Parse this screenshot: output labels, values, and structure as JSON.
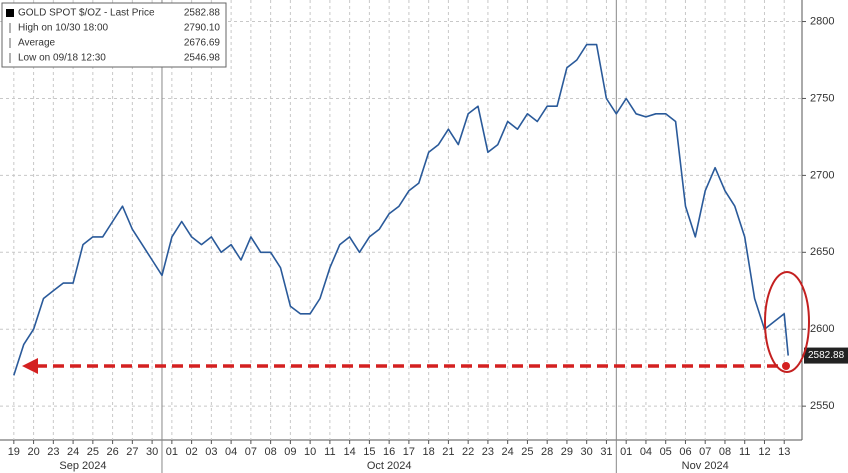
{
  "chart_data": {
    "type": "line",
    "legend_box": [
      {
        "text": "GOLD SPOT $/OZ - Last Price",
        "value": 2582.88
      },
      {
        "text": "High on 10/30 18:00",
        "value": {
          "value": 2790.1,
          "label": "2790.10"
        }
      },
      {
        "text": "Average",
        "value": 2676.69
      },
      {
        "text": "Low on 09/18 12:30",
        "value": 2546.98
      }
    ],
    "months": [
      "Sep 2024",
      "Oct 2024",
      "Nov 2024"
    ],
    "series": [
      {
        "name": "GOLD SPOT $/OZ",
        "color": "#2a5a9a",
        "x": [
          0,
          0.5,
          1,
          1.5,
          2,
          2.5,
          3,
          3.5,
          4,
          4.5,
          5,
          5.5,
          6,
          6.5,
          7,
          7.5,
          8,
          8.5,
          9,
          9.5,
          10,
          10.5,
          11,
          11.5,
          12,
          12.5,
          13,
          13.5,
          14,
          14.5,
          15,
          15.5,
          16,
          16.5,
          17,
          17.5,
          18,
          18.5,
          19,
          19.5,
          20,
          20.5,
          21,
          21.5,
          22,
          22.5,
          23,
          23.5,
          24,
          24.5,
          25,
          25.5,
          26,
          26.5,
          27,
          27.5,
          28,
          28.5,
          29,
          29.5,
          30,
          30.5,
          31,
          31.5,
          32,
          32.5,
          33,
          33.5,
          34,
          34.5,
          35,
          35.5,
          36,
          36.5,
          37,
          37.5,
          38,
          38.5,
          39,
          39.2
        ],
        "values": [
          2570,
          2590,
          2600,
          2620,
          2625,
          2630,
          2630,
          2655,
          2660,
          2660,
          2670,
          2680,
          2665,
          2655,
          2645,
          2635,
          2660,
          2670,
          2660,
          2655,
          2660,
          2650,
          2655,
          2645,
          2660,
          2650,
          2650,
          2640,
          2615,
          2610,
          2610,
          2620,
          2640,
          2655,
          2660,
          2650,
          2660,
          2665,
          2675,
          2680,
          2690,
          2695,
          2715,
          2720,
          2730,
          2720,
          2740,
          2745,
          2715,
          2720,
          2735,
          2730,
          2740,
          2735,
          2745,
          2745,
          2770,
          2775,
          2785,
          2785,
          2750,
          2740,
          2750,
          2740,
          2738,
          2740,
          2740,
          2735,
          2680,
          2660,
          2690,
          2705,
          2690,
          2680,
          2660,
          2620,
          2600,
          2605,
          2610,
          2582.88
        ]
      }
    ],
    "xlim": [
      -0.7,
      39.9
    ],
    "xticks": [
      {
        "value": 0,
        "label": "19"
      },
      {
        "value": 1,
        "label": "20"
      },
      {
        "value": 2,
        "label": "23"
      },
      {
        "value": 3,
        "label": "24"
      },
      {
        "value": 4,
        "label": "25"
      },
      {
        "value": 5,
        "label": "26"
      },
      {
        "value": 6,
        "label": "27"
      },
      {
        "value": 7,
        "label": "30"
      },
      {
        "value": 8,
        "label": "01"
      },
      {
        "value": 9,
        "label": "02"
      },
      {
        "value": 10,
        "label": "03"
      },
      {
        "value": 11,
        "label": "04"
      },
      {
        "value": 12,
        "label": "07"
      },
      {
        "value": 13,
        "label": "08"
      },
      {
        "value": 14,
        "label": "09"
      },
      {
        "value": 15,
        "label": "10"
      },
      {
        "value": 16,
        "label": "11"
      },
      {
        "value": 17,
        "label": "14"
      },
      {
        "value": 18,
        "label": "15"
      },
      {
        "value": 19,
        "label": "16"
      },
      {
        "value": 20,
        "label": "17"
      },
      {
        "value": 21,
        "label": "18"
      },
      {
        "value": 22,
        "label": "21"
      },
      {
        "value": 23,
        "label": "22"
      },
      {
        "value": 24,
        "label": "23"
      },
      {
        "value": 25,
        "label": "24"
      },
      {
        "value": 26,
        "label": "25"
      },
      {
        "value": 27,
        "label": "28"
      },
      {
        "value": 28,
        "label": "29"
      },
      {
        "value": 29,
        "label": "30"
      },
      {
        "value": 30,
        "label": "31"
      },
      {
        "value": 31,
        "label": "01"
      },
      {
        "value": 32,
        "label": "04"
      },
      {
        "value": 33,
        "label": "05"
      },
      {
        "value": 34,
        "label": "06"
      },
      {
        "value": 35,
        "label": "07"
      },
      {
        "value": 36,
        "label": "08"
      },
      {
        "value": 37,
        "label": "11"
      },
      {
        "value": 38,
        "label": "12"
      },
      {
        "value": 39,
        "label": "13"
      }
    ],
    "ylim": [
      2528,
      2814
    ],
    "yticks": [
      2550,
      2600,
      2650,
      2700,
      2750,
      2800
    ],
    "grid": true
  }
}
